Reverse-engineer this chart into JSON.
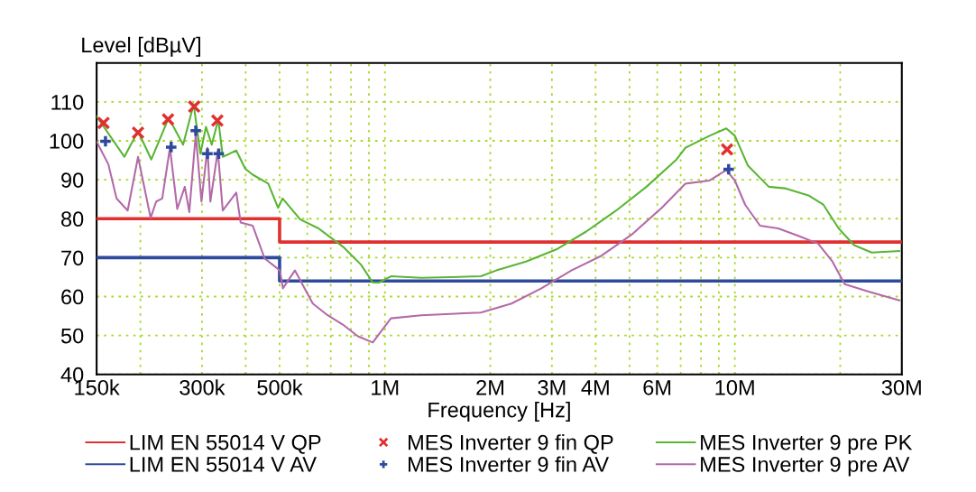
{
  "chart_data": {
    "type": "line",
    "ylabel": "Level [dBµV]",
    "xlabel": "Frequency [Hz]",
    "log": "x",
    "xlim": [
      150000,
      30000000
    ],
    "ylim": [
      40,
      120
    ],
    "xticks": [
      {
        "value": 150000,
        "label": "150k"
      },
      {
        "value": 200000,
        "label": null
      },
      {
        "value": 300000,
        "label": "300k"
      },
      {
        "value": 400000,
        "label": null
      },
      {
        "value": 500000,
        "label": "500k"
      },
      {
        "value": 600000,
        "label": null
      },
      {
        "value": 700000,
        "label": null
      },
      {
        "value": 800000,
        "label": null
      },
      {
        "value": 900000,
        "label": null
      },
      {
        "value": 1000000,
        "label": "1M"
      },
      {
        "value": 2000000,
        "label": "2M"
      },
      {
        "value": 3000000,
        "label": "3M"
      },
      {
        "value": 4000000,
        "label": "4M"
      },
      {
        "value": 5000000,
        "label": null
      },
      {
        "value": 6000000,
        "label": "6M"
      },
      {
        "value": 7000000,
        "label": null
      },
      {
        "value": 8000000,
        "label": null
      },
      {
        "value": 9000000,
        "label": null
      },
      {
        "value": 10000000,
        "label": "10M"
      },
      {
        "value": 20000000,
        "label": null
      },
      {
        "value": 30000000,
        "label": "30M"
      }
    ],
    "yticks": [
      40,
      50,
      60,
      70,
      80,
      90,
      100,
      110
    ],
    "grid": true,
    "legend": "bottom",
    "series": [
      {
        "name": "LIM EN 55014 V QP",
        "color": "#e03030",
        "marker": "none",
        "x": [
          150000,
          500000,
          500000,
          30000000
        ],
        "values": [
          80,
          80,
          74,
          74
        ]
      },
      {
        "name": "LIM EN 55014 V AV",
        "color": "#2e4a9e",
        "marker": "none",
        "x": [
          150000,
          500000,
          500000,
          30000000
        ],
        "values": [
          70,
          70,
          64,
          64
        ]
      },
      {
        "name": "MES Inverter 9 fin QP",
        "color": "#e03030",
        "type": "scatter",
        "marker": "cross",
        "x": [
          157000,
          197000,
          240000,
          285000,
          332000,
          9500000
        ],
        "values": [
          104.6,
          102.1,
          105.5,
          108.8,
          105.2,
          97.8
        ]
      },
      {
        "name": "MES Inverter 9 fin AV",
        "color": "#2e4a9e",
        "type": "scatter",
        "marker": "plus",
        "x": [
          159000,
          245000,
          288000,
          311000,
          335000,
          9600000
        ],
        "values": [
          99.9,
          98.4,
          102.6,
          96.7,
          96.7,
          92.7
        ]
      },
      {
        "name": "MES Inverter 9 pre PK",
        "color": "#5ab535",
        "marker": "none",
        "x": [
          150000,
          180000,
          197000,
          215000,
          241000,
          265000,
          284000,
          297000,
          308000,
          320000,
          334000,
          344000,
          376000,
          399000,
          419000,
          464000,
          495000,
          510000,
          573000,
          646000,
          759000,
          854000,
          923000,
          962000,
          1040000,
          1270000,
          1880000,
          2080000,
          2530000,
          3090000,
          3760000,
          4580000,
          5590000,
          6810000,
          7220000,
          8470000,
          9450000,
          10000000,
          10900000,
          12500000,
          13900000,
          16300000,
          17900000,
          19800000,
          21900000,
          24600000,
          29500000
        ],
        "values": [
          106.3,
          95.9,
          102.5,
          95.2,
          105.9,
          99,
          109.4,
          96.7,
          103.6,
          99,
          105.5,
          95.9,
          97.5,
          92.8,
          91.3,
          89,
          82.8,
          85.2,
          79.8,
          77.5,
          72.8,
          68.2,
          63.6,
          63.6,
          65.2,
          64.8,
          65.2,
          66.7,
          69,
          72.1,
          76.7,
          82.1,
          88.2,
          95.2,
          98.2,
          101.3,
          103.2,
          101.3,
          93.6,
          88.2,
          87.8,
          85.9,
          83.6,
          77.5,
          73.2,
          71.3,
          71.7
        ]
      },
      {
        "name": "MES Inverter 9 pre AV",
        "color": "#b36aa8",
        "marker": "none",
        "x": [
          150000,
          162000,
          171000,
          184000,
          197000,
          214000,
          222000,
          231000,
          243000,
          255000,
          268000,
          276000,
          288000,
          299000,
          311000,
          317000,
          333000,
          344000,
          376000,
          387000,
          419000,
          453000,
          501000,
          511000,
          553000,
          622000,
          686000,
          758000,
          837000,
          923000,
          1040000,
          1270000,
          1880000,
          2300000,
          2800000,
          3410000,
          4160000,
          5070000,
          6180000,
          7220000,
          8470000,
          9450000,
          10000000,
          10700000,
          11800000,
          13300000,
          15300000,
          17300000,
          19000000,
          20600000,
          24100000,
          29500000
        ],
        "values": [
          99.8,
          94,
          85.2,
          82.1,
          95.9,
          80.2,
          84.4,
          85.2,
          98.2,
          82.5,
          88.2,
          81.7,
          101.7,
          84.4,
          98.2,
          84.4,
          97.5,
          82.1,
          86.7,
          79,
          78.2,
          69.8,
          66.7,
          62.1,
          66.7,
          58.2,
          55.2,
          52.8,
          49.8,
          48.2,
          54.4,
          55.2,
          55.9,
          58.2,
          62.1,
          66.7,
          70.5,
          75.9,
          82.8,
          89,
          89.8,
          92.5,
          89.8,
          83.6,
          78.2,
          77.5,
          75.5,
          73.6,
          69,
          63.2,
          61.3,
          59
        ]
      }
    ]
  }
}
